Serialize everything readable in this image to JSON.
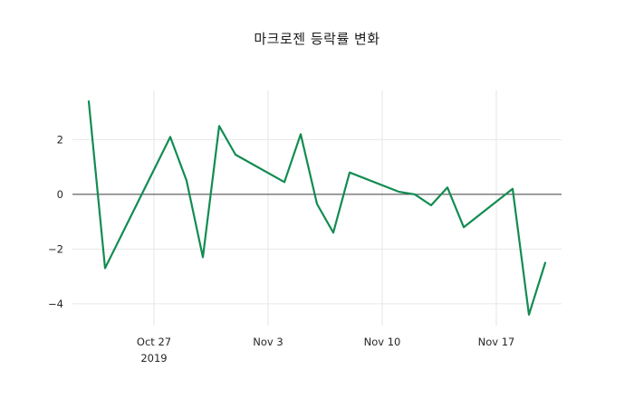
{
  "chart_data": {
    "type": "line",
    "title": "마크로젠 등락률 변화",
    "xlabel": "",
    "ylabel": "",
    "grid": true,
    "legend_position": "none",
    "zeroline": true,
    "line_color": "#128c51",
    "grid_color": "#e6e6e6",
    "zeroline_color": "#3c3c3c",
    "tick_color": "#262626",
    "xlim": [
      "2019-10-22",
      "2019-11-21"
    ],
    "ylim": [
      -4.8,
      3.8
    ],
    "yticks": [
      {
        "value": 2,
        "label": "2"
      },
      {
        "value": 0,
        "label": "0"
      },
      {
        "value": -2,
        "label": "−2"
      },
      {
        "value": -4,
        "label": "−4"
      }
    ],
    "xticks": [
      {
        "date": "2019-10-27",
        "label": "Oct 27",
        "sublabel": "2019"
      },
      {
        "date": "2019-11-03",
        "label": "Nov 3"
      },
      {
        "date": "2019-11-10",
        "label": "Nov 10"
      },
      {
        "date": "2019-11-17",
        "label": "Nov 17"
      }
    ],
    "series": [
      {
        "name": "",
        "color": "#128c51",
        "x": [
          "2019-10-23",
          "2019-10-24",
          "2019-10-25",
          "2019-10-28",
          "2019-10-29",
          "2019-10-30",
          "2019-10-31",
          "2019-11-01",
          "2019-11-04",
          "2019-11-05",
          "2019-11-06",
          "2019-11-07",
          "2019-11-08",
          "2019-11-11",
          "2019-11-12",
          "2019-11-13",
          "2019-11-14",
          "2019-11-15",
          "2019-11-18",
          "2019-11-19",
          "2019-11-20"
        ],
        "y": [
          3.4,
          -2.7,
          -1.5,
          2.1,
          0.5,
          -2.3,
          2.5,
          1.45,
          0.45,
          2.2,
          -0.35,
          -1.4,
          0.8,
          0.1,
          0.0,
          -0.4,
          0.25,
          -1.2,
          0.2,
          -4.4,
          -2.5
        ]
      }
    ]
  }
}
